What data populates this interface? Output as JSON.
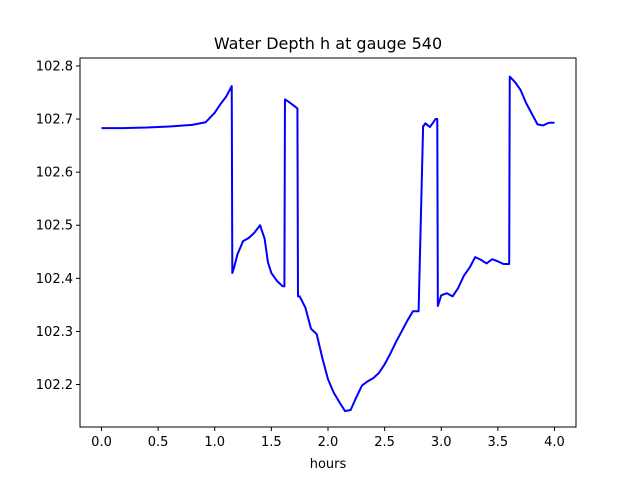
{
  "chart_data": {
    "type": "line",
    "title": "Water Depth h at gauge 540",
    "xlabel": "hours",
    "ylabel": "",
    "xlim": [
      -0.19,
      4.19
    ],
    "ylim": [
      102.12,
      102.815
    ],
    "x_ticks": [
      0.0,
      0.5,
      1.0,
      1.5,
      2.0,
      2.5,
      3.0,
      3.5,
      4.0
    ],
    "x_tick_labels": [
      "0.0",
      "0.5",
      "1.0",
      "1.5",
      "2.0",
      "2.5",
      "3.0",
      "3.5",
      "4.0"
    ],
    "y_ticks": [
      102.2,
      102.3,
      102.4,
      102.5,
      102.6,
      102.7,
      102.8
    ],
    "y_tick_labels": [
      "102.2",
      "102.3",
      "102.4",
      "102.5",
      "102.6",
      "102.7",
      "102.8"
    ],
    "grid": false,
    "series": [
      {
        "name": "",
        "color": "#0000ff",
        "x": [
          0.0,
          0.2,
          0.4,
          0.6,
          0.8,
          0.92,
          1.0,
          1.05,
          1.1,
          1.15,
          1.155,
          1.17,
          1.2,
          1.25,
          1.3,
          1.35,
          1.4,
          1.44,
          1.47,
          1.5,
          1.55,
          1.6,
          1.615,
          1.62,
          1.65,
          1.7,
          1.73,
          1.735,
          1.75,
          1.8,
          1.85,
          1.9,
          1.95,
          2.0,
          2.05,
          2.1,
          2.15,
          2.2,
          2.25,
          2.3,
          2.35,
          2.4,
          2.45,
          2.5,
          2.55,
          2.6,
          2.65,
          2.7,
          2.75,
          2.8,
          2.84,
          2.845,
          2.86,
          2.9,
          2.95,
          2.965,
          2.97,
          3.0,
          3.05,
          3.1,
          3.15,
          3.2,
          3.25,
          3.3,
          3.35,
          3.4,
          3.45,
          3.5,
          3.55,
          3.6,
          3.605,
          3.65,
          3.7,
          3.75,
          3.8,
          3.85,
          3.9,
          3.95,
          4.0
        ],
        "y": [
          102.683,
          102.683,
          102.684,
          102.686,
          102.689,
          102.694,
          102.712,
          102.728,
          102.742,
          102.762,
          102.41,
          102.42,
          102.445,
          102.47,
          102.476,
          102.486,
          102.5,
          102.475,
          102.43,
          102.41,
          102.395,
          102.385,
          102.385,
          102.737,
          102.733,
          102.725,
          102.72,
          102.366,
          102.366,
          102.345,
          102.305,
          102.295,
          102.25,
          102.21,
          102.185,
          102.167,
          102.15,
          102.152,
          102.176,
          102.198,
          102.206,
          102.212,
          102.222,
          102.238,
          102.258,
          102.28,
          102.3,
          102.32,
          102.338,
          102.338,
          102.687,
          102.687,
          102.692,
          102.685,
          102.7,
          102.7,
          102.348,
          102.368,
          102.372,
          102.366,
          102.382,
          102.405,
          102.42,
          102.44,
          102.435,
          102.428,
          102.436,
          102.432,
          102.427,
          102.427,
          102.78,
          102.77,
          102.755,
          102.73,
          102.71,
          102.69,
          102.688,
          102.693,
          102.693
        ]
      }
    ]
  }
}
